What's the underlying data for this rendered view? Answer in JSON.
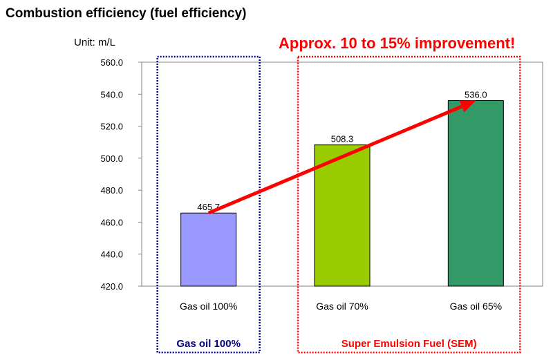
{
  "chart_data": {
    "type": "bar",
    "title": "Combustion efficiency (fuel efficiency)",
    "unit_label": "Unit: m/L",
    "categories": [
      "Gas oil 100%",
      "Gas oil 70%",
      "Gas oil 65%"
    ],
    "values": [
      465.7,
      508.3,
      536.0
    ],
    "value_labels": [
      "465.7",
      "508.3",
      "536.0"
    ],
    "bar_colors": [
      "#9999ff",
      "#99cc00",
      "#339966"
    ],
    "ylim": [
      420,
      560
    ],
    "yticks": [
      420,
      440,
      460,
      480,
      500,
      520,
      540,
      560
    ],
    "ytick_labels": [
      "420.0",
      "440.0",
      "460.0",
      "480.0",
      "500.0",
      "520.0",
      "540.0",
      "560.0"
    ],
    "grid": false,
    "annotation": "Approx. 10 to 15% improvement!",
    "annotation_color": "#ff0000",
    "groups": [
      {
        "label": "Gas oil 100%",
        "color": "#000080",
        "categories": [
          0
        ]
      },
      {
        "label": "Super Emulsion Fuel (SEM)",
        "color": "#ff0000",
        "categories": [
          1,
          2
        ]
      }
    ]
  }
}
